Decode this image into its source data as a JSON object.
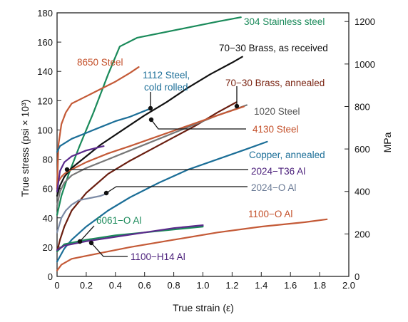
{
  "chart_data": {
    "type": "line",
    "xlabel": "True strain (ε)",
    "ylabel_left": "True stress (psi × 10³)",
    "ylabel_right": "MPa",
    "xlim": [
      0,
      2.0
    ],
    "ylim": [
      0,
      180
    ],
    "ylim_mpa": [
      0,
      1241
    ],
    "x_ticks": [
      "0",
      "0.2",
      "0.4",
      "0.6",
      "0.8",
      "1.0",
      "1.2",
      "1.4",
      "1.6",
      "1.8",
      "2.0"
    ],
    "y_ticks": [
      "0",
      "20",
      "40",
      "60",
      "80",
      "100",
      "120",
      "140",
      "160",
      "180"
    ],
    "y_ticks_mpa": [
      "0",
      "200",
      "400",
      "600",
      "800",
      "1000",
      "1200"
    ],
    "series": [
      {
        "name": "304 Stainless steel",
        "color": "#1a8a5a",
        "label_color": "#1a8a5a",
        "x": [
          0,
          0.03,
          0.08,
          0.15,
          0.25,
          0.35,
          0.43,
          0.55,
          0.7,
          0.9,
          1.1,
          1.26
        ],
        "y": [
          42,
          55,
          70,
          88,
          112,
          138,
          157,
          163,
          166,
          170,
          174,
          177
        ]
      },
      {
        "name": "8650 Steel",
        "color": "#c45a37",
        "label_color": "#c4502a",
        "x": [
          0,
          0.01,
          0.03,
          0.06,
          0.1,
          0.2,
          0.3,
          0.4,
          0.5,
          0.56
        ],
        "y": [
          60,
          90,
          104,
          112,
          118,
          123,
          128,
          133,
          139,
          143
        ]
      },
      {
        "name": "1112 Steel, cold rolled",
        "color": "#1b6e97",
        "label_color": "#1b6e97",
        "x": [
          0,
          0.02,
          0.1,
          0.2,
          0.3,
          0.4,
          0.5,
          0.6,
          0.65
        ],
        "y": [
          85,
          89,
          94,
          98,
          102,
          106,
          109,
          113,
          115
        ]
      },
      {
        "name": "70−30 Brass, as received",
        "color": "#111111",
        "label_color": "#111111",
        "x": [
          0,
          0.02,
          0.05,
          0.1,
          0.2,
          0.3,
          0.45,
          0.6,
          0.75,
          0.9,
          1.05,
          1.2,
          1.27
        ],
        "y": [
          55,
          62,
          68,
          74,
          82,
          90,
          100,
          110,
          119,
          129,
          138,
          146,
          150
        ]
      },
      {
        "name": "70−30 Brass, annealed",
        "color": "#6a1e10",
        "label_color": "#7a2412",
        "x": [
          0,
          0.02,
          0.05,
          0.1,
          0.2,
          0.35,
          0.5,
          0.65,
          0.8,
          0.95,
          1.1,
          1.23
        ],
        "y": [
          17,
          25,
          34,
          45,
          57,
          70,
          79,
          87,
          95,
          103,
          112,
          119
        ]
      },
      {
        "name": "1020 Steel",
        "color": "#777777",
        "label_color": "#555555",
        "x": [
          0,
          0.02,
          0.05,
          0.1,
          0.2,
          0.35,
          0.5,
          0.7,
          0.9,
          1.1,
          1.3
        ],
        "y": [
          48,
          58,
          64,
          69,
          74,
          80,
          86,
          94,
          102,
          110,
          117
        ]
      },
      {
        "name": "4130 Steel",
        "color": "#c45a37",
        "label_color": "#c4502a",
        "x": [
          0,
          0.01,
          0.03,
          0.05,
          0.08,
          0.12,
          0.2,
          0.35,
          0.5,
          0.7,
          0.9,
          1.1,
          1.28
        ],
        "y": [
          62,
          65,
          68,
          70,
          72,
          74,
          78,
          84,
          89,
          96,
          103,
          110,
          116
        ]
      },
      {
        "name": "Copper, annealed",
        "color": "#1b6e97",
        "label_color": "#1b6e97",
        "x": [
          0,
          0.05,
          0.1,
          0.2,
          0.35,
          0.5,
          0.7,
          0.9,
          1.1,
          1.3,
          1.44
        ],
        "y": [
          10,
          19,
          25,
          34,
          45,
          54,
          64,
          73,
          80,
          87,
          92
        ]
      },
      {
        "name": "2024−T36 Al",
        "color": "#5b2a8c",
        "label_color": "#4a1e7a",
        "x": [
          0,
          0.02,
          0.05,
          0.1,
          0.2,
          0.32
        ],
        "y": [
          58,
          72,
          78,
          82,
          86,
          89
        ]
      },
      {
        "name": "2024−O Al",
        "color": "#7c8aa5",
        "label_color": "#6a7a95",
        "x": [
          0,
          0.03,
          0.06,
          0.1,
          0.15,
          0.2,
          0.25,
          0.3,
          0.35
        ],
        "y": [
          30,
          40,
          45,
          49,
          52,
          53,
          54,
          55,
          57
        ]
      },
      {
        "name": "6061−O Al",
        "color": "#1a8a5a",
        "label_color": "#1a8a5a",
        "x": [
          0,
          0.05,
          0.2,
          0.4,
          0.6,
          0.8,
          1.0
        ],
        "y": [
          17,
          22,
          25,
          28,
          30,
          32,
          34
        ]
      },
      {
        "name": "1100−H14 Al",
        "color": "#5b2a8c",
        "label_color": "#4a1e7a",
        "x": [
          0,
          0.05,
          0.2,
          0.4,
          0.6,
          0.8,
          1.0
        ],
        "y": [
          18,
          21,
          24,
          27,
          30,
          33,
          35
        ]
      },
      {
        "name": "1100−O Al",
        "color": "#c45a37",
        "label_color": "#c4502a",
        "x": [
          0,
          0.03,
          0.1,
          0.3,
          0.5,
          0.8,
          1.1,
          1.4,
          1.7,
          1.85
        ],
        "y": [
          4,
          8,
          12,
          16,
          20,
          25,
          30,
          34,
          37,
          39
        ]
      }
    ],
    "annotations": [
      {
        "text": "304 Stainless steel",
        "series": "304 Stainless steel"
      },
      {
        "text": "8650 Steel",
        "series": "8650 Steel"
      },
      {
        "text": "1112 Steel,",
        "text2": "cold rolled",
        "series": "1112 Steel, cold rolled"
      },
      {
        "text": "70−30 Brass, as received",
        "series": "70−30 Brass, as received"
      },
      {
        "text": "70−30 Brass, annealed",
        "series": "70−30 Brass, annealed"
      },
      {
        "text": "1020 Steel",
        "series": "1020 Steel"
      },
      {
        "text": "4130 Steel",
        "series": "4130 Steel"
      },
      {
        "text": "Copper, annealed",
        "series": "Copper, annealed"
      },
      {
        "text": "2024−T36 Al",
        "series": "2024−T36 Al"
      },
      {
        "text": "2024−O Al",
        "series": "2024−O Al"
      },
      {
        "text": "6061−O Al",
        "series": "6061−O Al"
      },
      {
        "text": "1100−H14 Al",
        "series": "1100−H14 Al"
      },
      {
        "text": "1100−O Al",
        "series": "1100−O Al"
      }
    ],
    "grid": false,
    "legend": "none"
  }
}
